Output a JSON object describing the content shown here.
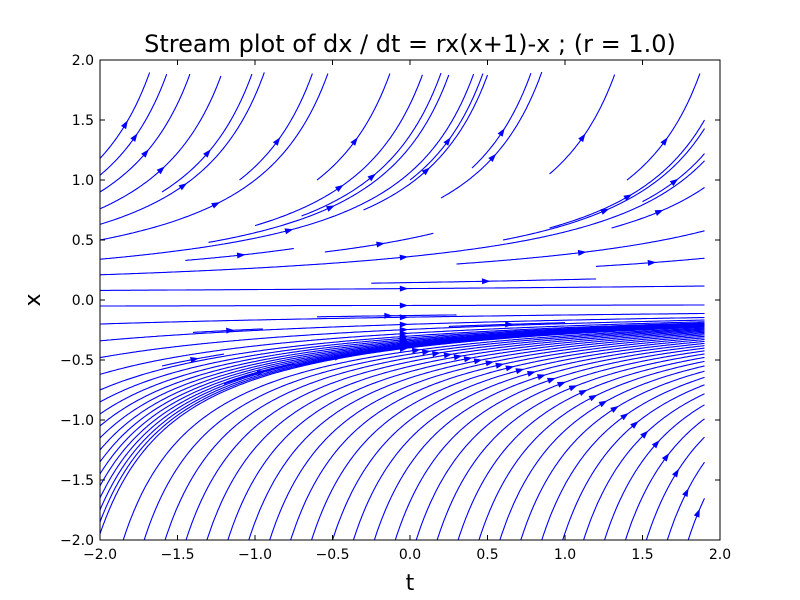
{
  "chart_data": {
    "type": "streamplot",
    "title": "Stream plot of dx / dt = rx(x+1)-x ; (r = 1.0)",
    "xlabel": "t",
    "ylabel": "x",
    "xlim": [
      -2.0,
      2.0
    ],
    "ylim": [
      -2.0,
      2.0
    ],
    "parameters": {
      "r": 1.0
    },
    "field": {
      "dt_dt": 1,
      "dx_dt": "r*x*(x+1) - x"
    },
    "x_ticks": [
      -2.0,
      -1.5,
      -1.0,
      -0.5,
      0.0,
      0.5,
      1.0,
      1.5,
      2.0
    ],
    "x_tick_labels": [
      "−2.0",
      "−1.5",
      "−1.0",
      "−0.5",
      "0.0",
      "0.5",
      "1.0",
      "1.5",
      "2.0"
    ],
    "y_ticks": [
      -2.0,
      -1.5,
      -1.0,
      -0.5,
      0.0,
      0.5,
      1.0,
      1.5,
      2.0
    ],
    "y_tick_labels": [
      "−2.0",
      "−1.5",
      "−1.0",
      "−0.5",
      "0.0",
      "0.5",
      "1.0",
      "1.5",
      "2.0"
    ],
    "grid": false,
    "stream_color": "#0000ff"
  }
}
